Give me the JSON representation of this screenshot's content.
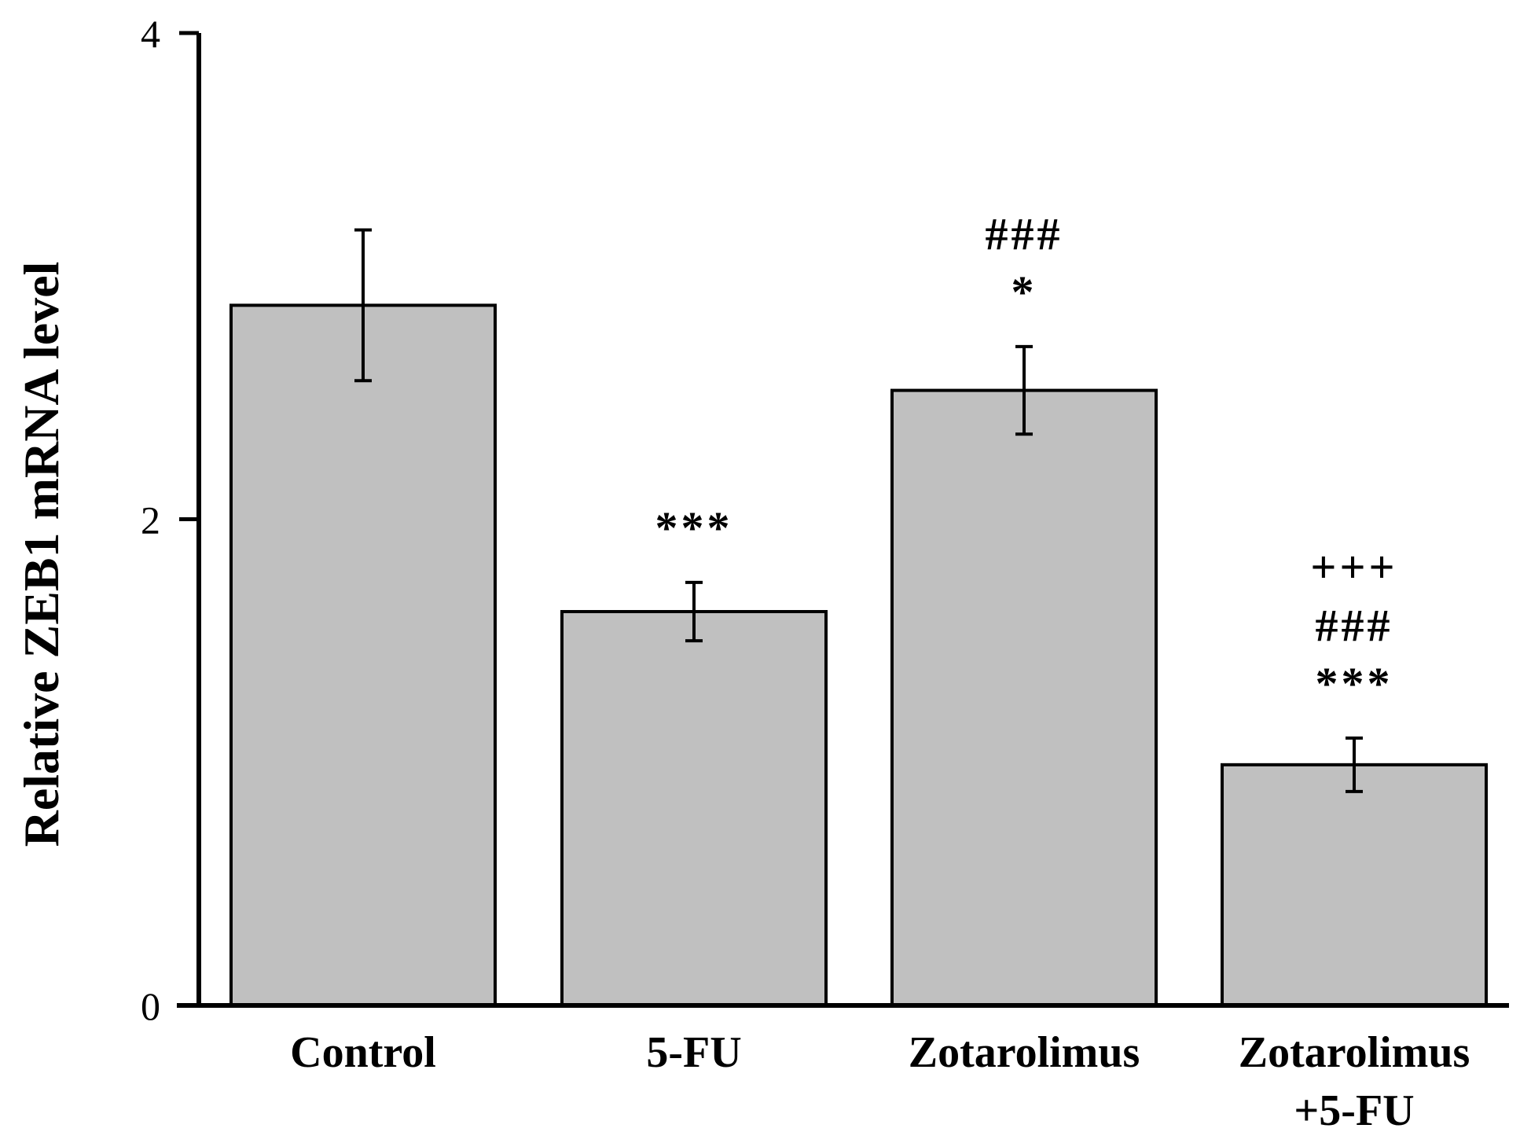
{
  "chart_data": {
    "type": "bar",
    "title": "",
    "xlabel": "",
    "ylabel": "Relative ZEB1 mRNA level",
    "ylim": [
      0,
      4
    ],
    "yticks": [
      0,
      2,
      4
    ],
    "grid": false,
    "categories": [
      {
        "lines": [
          "Control"
        ]
      },
      {
        "lines": [
          "5-FU"
        ]
      },
      {
        "lines": [
          "Zotarolimus"
        ]
      },
      {
        "lines": [
          "Zotarolimus",
          "+5-FU"
        ]
      }
    ],
    "values": [
      2.88,
      1.62,
      2.53,
      0.99
    ],
    "errors": [
      0.31,
      0.12,
      0.18,
      0.11
    ],
    "significance": [
      [],
      [
        "***"
      ],
      [
        "###",
        "*"
      ],
      [
        "+++",
        "###",
        "***"
      ]
    ],
    "colors": {
      "bar_fill": "#c0c0c0",
      "bar_stroke": "#000000",
      "axis": "#000000",
      "text": "#000000"
    }
  }
}
